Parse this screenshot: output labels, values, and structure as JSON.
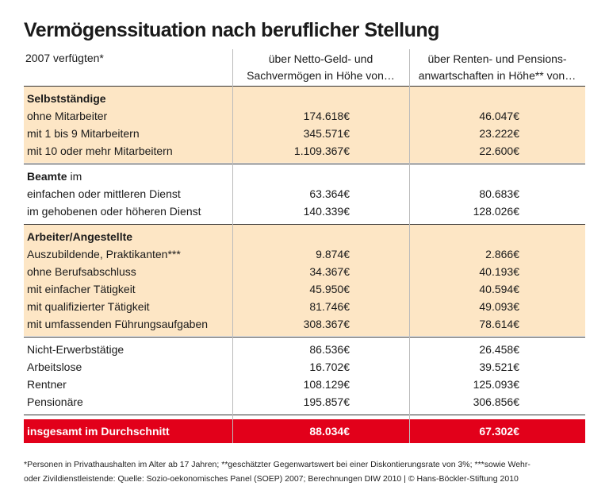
{
  "title": "Vermögenssituation nach beruflicher Stellung",
  "header": {
    "col0": "2007 verfügten*",
    "col1": [
      "über Netto-Geld- und",
      "Sachvermögen in Höhe von…"
    ],
    "col2": [
      "über Renten- und Pensions-",
      "anwartschaften in Höhe** von…"
    ]
  },
  "groups": [
    {
      "heading": "Selbstständige",
      "rows": [
        [
          "ohne Mitarbeiter",
          "174.618€",
          "46.047€"
        ],
        [
          "mit 1 bis 9 Mitarbeitern",
          "345.571€",
          "23.222€"
        ],
        [
          "mit 10 oder mehr Mitarbeitern",
          "1.109.367€",
          "22.600€"
        ]
      ]
    },
    {
      "heading": "Beamte",
      "heading_suffix": " im",
      "rows": [
        [
          "einfachen oder mittleren Dienst",
          "63.364€",
          "80.683€"
        ],
        [
          "im gehobenen oder höheren Dienst",
          "140.339€",
          "128.026€"
        ]
      ]
    },
    {
      "heading": "Arbeiter/Angestellte",
      "rows": [
        [
          "Auszubildende, Praktikanten***",
          "9.874€",
          "2.866€"
        ],
        [
          "ohne Berufsabschluss",
          "34.367€",
          "40.193€"
        ],
        [
          "mit einfacher Tätigkeit",
          "45.950€",
          "40.594€"
        ],
        [
          "mit qualifizierter Tätigkeit",
          "81.746€",
          "49.093€"
        ],
        [
          "mit umfassenden Führungsaufgaben",
          "308.367€",
          "78.614€"
        ]
      ]
    },
    {
      "rows": [
        [
          "Nicht-Erwerbstätige",
          "86.536€",
          "26.458€"
        ],
        [
          "Arbeitslose",
          "16.702€",
          "39.521€"
        ],
        [
          "Rentner",
          "108.129€",
          "125.093€"
        ],
        [
          "Pensionäre",
          "195.857€",
          "306.856€"
        ]
      ]
    }
  ],
  "total": [
    "insgesamt im Durchschnitt",
    "88.034€",
    "67.302€"
  ],
  "footnote": [
    "*Personen in Privathaushalten im Alter ab 17 Jahren; **geschätzter Gegenwartswert bei einer Diskontierungsrate von 3%; ***sowie Wehr-",
    "oder Zivildienstleistende: Quelle: Sozio-oekonomisches Panel (SOEP) 2007; Berechnungen DIW 2010 | © Hans-Böckler-Stiftung 2010"
  ]
}
